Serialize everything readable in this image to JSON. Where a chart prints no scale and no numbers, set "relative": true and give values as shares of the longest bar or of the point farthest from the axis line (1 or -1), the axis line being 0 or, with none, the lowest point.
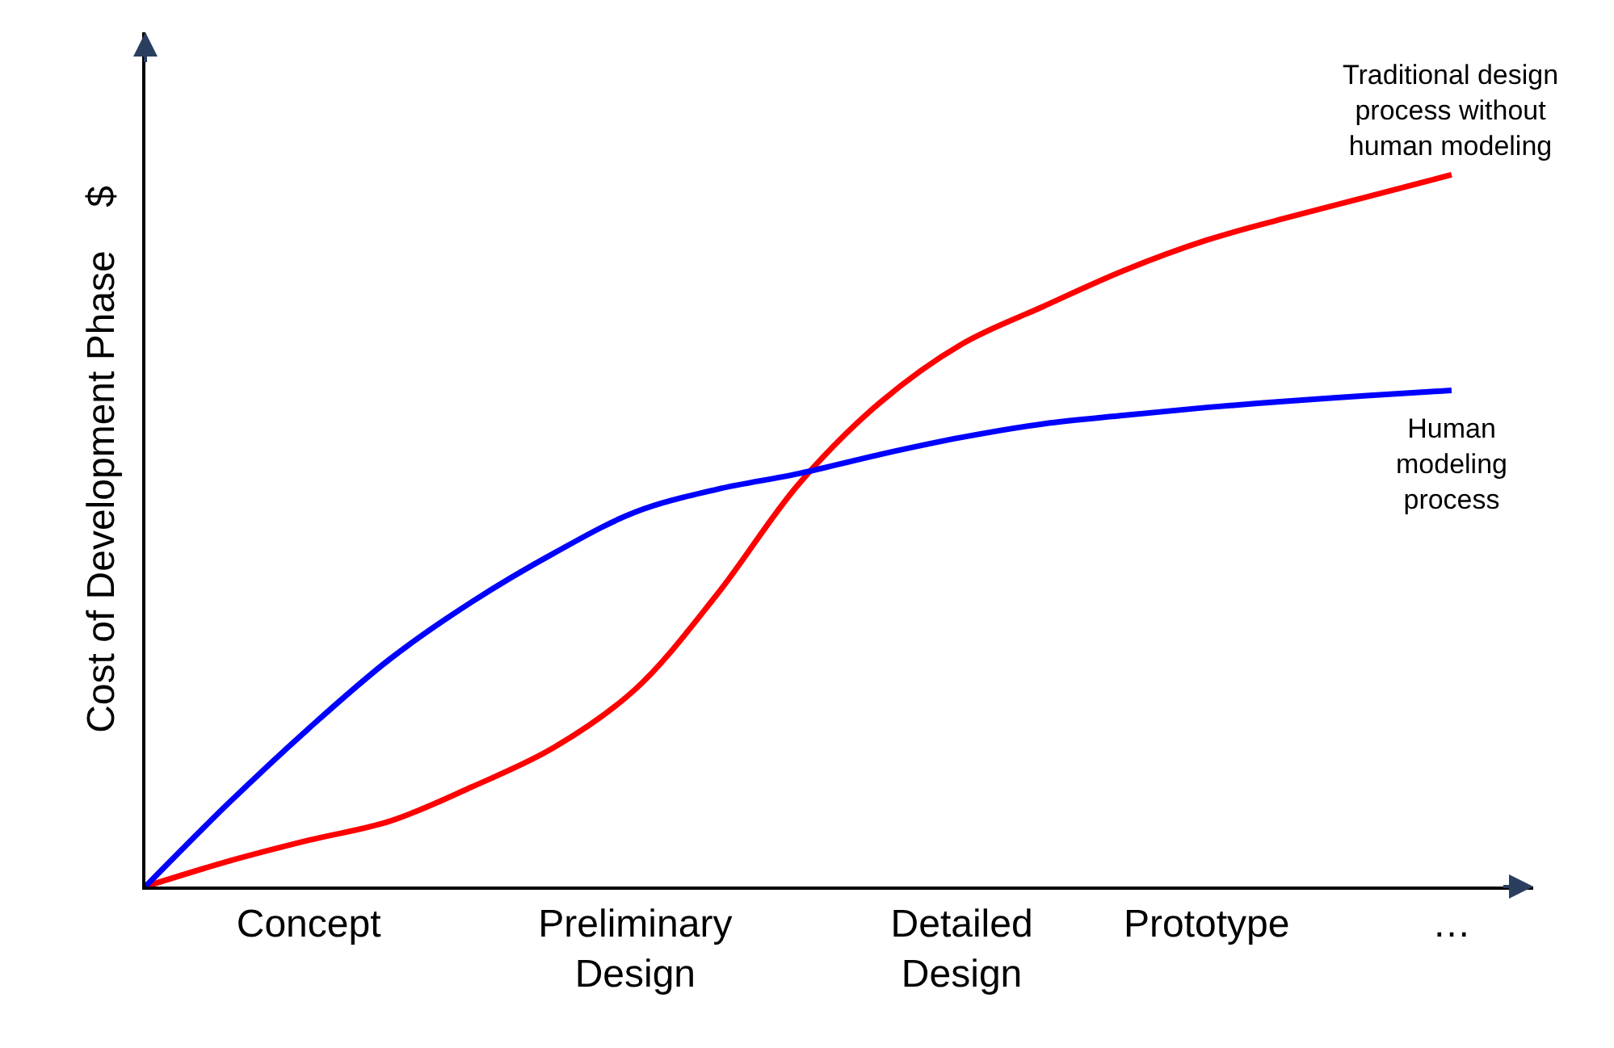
{
  "chart_data": {
    "type": "line",
    "relative": true,
    "ylabel": "Cost of Development Phase    $",
    "categories": [
      null,
      null,
      "Concept",
      null,
      null,
      null,
      "Preliminary\nDesign",
      null,
      null,
      null,
      "Detailed\nDesign",
      null,
      null,
      "Prototype",
      null,
      null,
      "…"
    ],
    "legend": false,
    "marker": "none",
    "line_style": "solid",
    "series": [
      {
        "name": "Traditional design\nprocess without\nhuman modeling",
        "color": "#ff0000",
        "values": [
          0,
          0.035,
          0.065,
          0.092,
          0.14,
          0.195,
          0.277,
          0.41,
          0.565,
          0.68,
          0.762,
          0.815,
          0.866,
          0.908,
          0.94,
          0.97,
          1
        ]
      },
      {
        "name": "Human\nmodeling\nprocess",
        "color": "#0000ff",
        "values": [
          0,
          0.115,
          0.222,
          0.32,
          0.4,
          0.468,
          0.526,
          0.558,
          0.58,
          0.607,
          0.631,
          0.65,
          0.662,
          0.673,
          0.682,
          0.69,
          0.697
        ]
      }
    ]
  }
}
